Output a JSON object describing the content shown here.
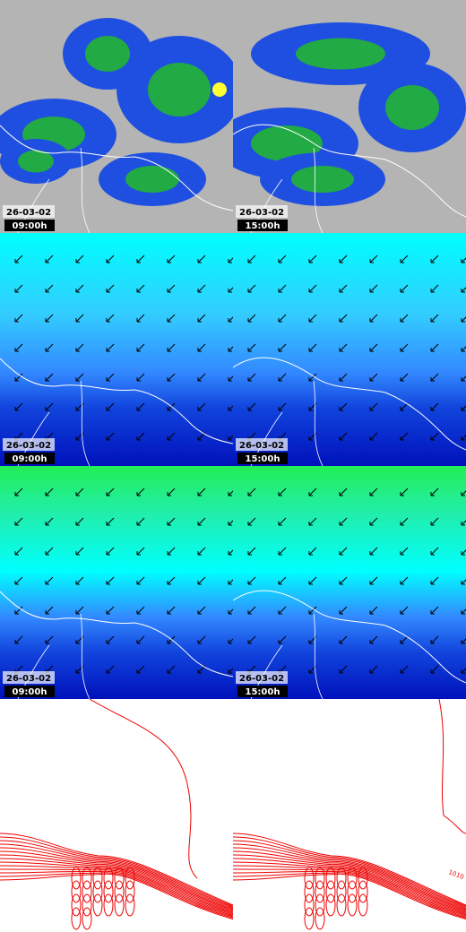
{
  "panels": [
    {
      "date": "26-03-02",
      "time": "09:00h"
    },
    {
      "date": "26-03-02",
      "time": "15:00h"
    },
    {
      "date": "26-03-02",
      "time": "09:00h"
    },
    {
      "date": "26-03-02",
      "time": "15:00h"
    },
    {
      "date": "26-03-02",
      "time": "09:00h"
    },
    {
      "date": "26-03-02",
      "time": "15:00h"
    },
    {},
    {
      "contour_label": "1010"
    }
  ]
}
